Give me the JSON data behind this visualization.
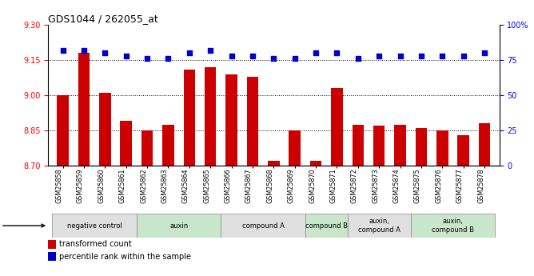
{
  "title": "GDS1044 / 262055_at",
  "samples": [
    "GSM25858",
    "GSM25859",
    "GSM25860",
    "GSM25861",
    "GSM25862",
    "GSM25863",
    "GSM25864",
    "GSM25865",
    "GSM25866",
    "GSM25867",
    "GSM25868",
    "GSM25869",
    "GSM25870",
    "GSM25871",
    "GSM25872",
    "GSM25873",
    "GSM25874",
    "GSM25875",
    "GSM25876",
    "GSM25877",
    "GSM25878"
  ],
  "bar_values": [
    9.0,
    9.18,
    9.01,
    8.89,
    8.85,
    8.875,
    9.11,
    9.12,
    9.09,
    9.08,
    8.72,
    8.85,
    8.72,
    9.03,
    8.875,
    8.87,
    8.875,
    8.86,
    8.85,
    8.83,
    8.88
  ],
  "dot_values": [
    82,
    82,
    80,
    78,
    76,
    76,
    80,
    82,
    78,
    78,
    76,
    76,
    80,
    80,
    76,
    78,
    78,
    78,
    78,
    78,
    80
  ],
  "ylim_left": [
    8.7,
    9.3
  ],
  "ylim_right": [
    0,
    100
  ],
  "yticks_left": [
    8.7,
    8.85,
    9.0,
    9.15,
    9.3
  ],
  "yticks_right": [
    0,
    25,
    50,
    75,
    100
  ],
  "groups": [
    {
      "label": "negative control",
      "start": 0,
      "end": 4,
      "color": "#e0e0e0"
    },
    {
      "label": "auxin",
      "start": 4,
      "end": 8,
      "color": "#c8e6c9"
    },
    {
      "label": "compound A",
      "start": 8,
      "end": 12,
      "color": "#e0e0e0"
    },
    {
      "label": "compound B",
      "start": 12,
      "end": 14,
      "color": "#c8e6c9"
    },
    {
      "label": "auxin,\ncompound A",
      "start": 14,
      "end": 17,
      "color": "#e0e0e0"
    },
    {
      "label": "auxin,\ncompound B",
      "start": 17,
      "end": 21,
      "color": "#c8e6c9"
    }
  ],
  "bar_color": "#cc0000",
  "dot_color": "#0000cc",
  "bar_bottom": 8.7,
  "grid_lines": [
    8.85,
    9.0,
    9.15
  ]
}
